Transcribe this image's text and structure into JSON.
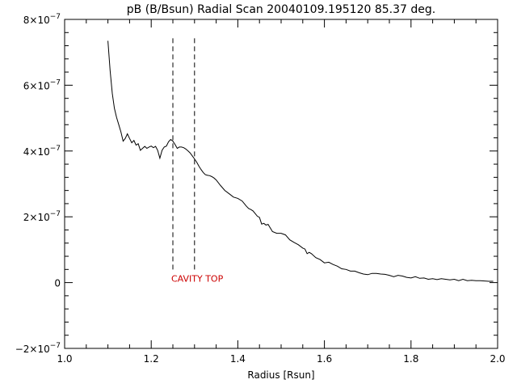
{
  "chart_data": {
    "type": "line",
    "title": "pB (B/Bsun) Radial Scan 20040109.195120 85.37 deg.",
    "xlabel": "Radius [Rsun]",
    "ylabel": "",
    "xlim": [
      1.0,
      2.0
    ],
    "ylim": [
      -2e-07,
      8e-07
    ],
    "x_ticks": [
      1.0,
      1.2,
      1.4,
      1.6,
      1.8,
      2.0
    ],
    "x_tick_labels": [
      "1.0",
      "1.2",
      "1.4",
      "1.6",
      "1.8",
      "2.0"
    ],
    "y_ticks": [
      -2e-07,
      0,
      2e-07,
      4e-07,
      6e-07,
      8e-07
    ],
    "y_tick_labels": [
      {
        "base": "−2×10",
        "exp": "−7"
      },
      {
        "base": "0",
        "exp": ""
      },
      {
        "base": "2×10",
        "exp": "−7"
      },
      {
        "base": "4×10",
        "exp": "−7"
      },
      {
        "base": "6×10",
        "exp": "−7"
      },
      {
        "base": "8×10",
        "exp": "−7"
      }
    ],
    "grid": false,
    "line_color": "#000000",
    "series": [
      {
        "x": [
          1.1,
          1.105,
          1.11,
          1.115,
          1.12,
          1.125,
          1.13,
          1.135,
          1.14,
          1.145,
          1.15,
          1.155,
          1.16,
          1.165,
          1.17,
          1.175,
          1.18,
          1.185,
          1.19,
          1.195,
          1.2,
          1.205,
          1.21,
          1.215,
          1.22,
          1.225,
          1.23,
          1.235,
          1.24,
          1.245,
          1.25,
          1.255,
          1.26,
          1.265,
          1.27,
          1.275,
          1.28,
          1.285,
          1.29,
          1.295,
          1.3,
          1.305,
          1.31,
          1.315,
          1.32,
          1.325,
          1.33,
          1.335,
          1.34,
          1.345,
          1.35,
          1.36,
          1.37,
          1.38,
          1.39,
          1.4,
          1.41,
          1.42,
          1.425,
          1.43,
          1.435,
          1.44,
          1.445,
          1.45,
          1.455,
          1.46,
          1.465,
          1.47,
          1.48,
          1.49,
          1.5,
          1.51,
          1.52,
          1.53,
          1.54,
          1.55,
          1.555,
          1.56,
          1.565,
          1.57,
          1.58,
          1.59,
          1.6,
          1.61,
          1.62,
          1.63,
          1.64,
          1.65,
          1.66,
          1.67,
          1.68,
          1.69,
          1.7,
          1.71,
          1.72,
          1.73,
          1.74,
          1.75,
          1.76,
          1.77,
          1.78,
          1.79,
          1.8,
          1.81,
          1.82,
          1.83,
          1.84,
          1.85,
          1.86,
          1.87,
          1.88,
          1.89,
          1.9,
          1.91,
          1.92,
          1.93,
          1.94,
          1.95,
          1.96,
          1.97,
          1.98,
          1.99
        ],
        "y": [
          7.35e-07,
          6.45e-07,
          5.75e-07,
          5.3e-07,
          5.02e-07,
          4.8e-07,
          4.58e-07,
          4.3e-07,
          4.38e-07,
          4.52e-07,
          4.38e-07,
          4.25e-07,
          4.32e-07,
          4.18e-07,
          4.22e-07,
          4.02e-07,
          4.08e-07,
          4.14e-07,
          4.08e-07,
          4.12e-07,
          4.15e-07,
          4.1e-07,
          4.14e-07,
          4.02e-07,
          3.78e-07,
          4.02e-07,
          4.12e-07,
          4.15e-07,
          4.28e-07,
          4.35e-07,
          4.3e-07,
          4.2e-07,
          4.08e-07,
          4.12e-07,
          4.12e-07,
          4.1e-07,
          4.06e-07,
          4e-07,
          3.94e-07,
          3.85e-07,
          3.76e-07,
          3.66e-07,
          3.54e-07,
          3.44e-07,
          3.35e-07,
          3.28e-07,
          3.26e-07,
          3.25e-07,
          3.22e-07,
          3.18e-07,
          3.12e-07,
          2.95e-07,
          2.8e-07,
          2.7e-07,
          2.6e-07,
          2.56e-07,
          2.48e-07,
          2.32e-07,
          2.25e-07,
          2.22e-07,
          2.18e-07,
          2.1e-07,
          2.02e-07,
          1.98e-07,
          1.78e-07,
          1.8e-07,
          1.75e-07,
          1.77e-07,
          1.55e-07,
          1.5e-07,
          1.5e-07,
          1.45e-07,
          1.3e-07,
          1.22e-07,
          1.15e-07,
          1.05e-07,
          1.02e-07,
          8.8e-08,
          9.2e-08,
          8.8e-08,
          7.6e-08,
          7e-08,
          6e-08,
          6.2e-08,
          5.5e-08,
          5e-08,
          4.2e-08,
          4e-08,
          3.5e-08,
          3.5e-08,
          3e-08,
          2.6e-08,
          2.4e-08,
          2.8e-08,
          2.8e-08,
          2.6e-08,
          2.5e-08,
          2.2e-08,
          1.8e-08,
          2.2e-08,
          2e-08,
          1.6e-08,
          1.4e-08,
          1.8e-08,
          1.3e-08,
          1.4e-08,
          1e-08,
          1.2e-08,
          9e-09,
          1.2e-08,
          1e-08,
          8e-09,
          1e-08,
          6e-09,
          1e-08,
          6e-09,
          7e-09,
          6e-09,
          6e-09,
          5e-09,
          4e-09,
          4e-09
        ]
      }
    ],
    "vlines": [
      {
        "x": 1.25,
        "y_from": 4e-08,
        "y_to": 7.5e-07,
        "style": "dashed"
      },
      {
        "x": 1.3,
        "y_from": 4e-08,
        "y_to": 7.5e-07,
        "style": "dashed"
      }
    ],
    "annotations": [
      {
        "text": "CAVITY TOP",
        "x": 1.25,
        "y": 0,
        "color": "#cc0000"
      }
    ]
  }
}
